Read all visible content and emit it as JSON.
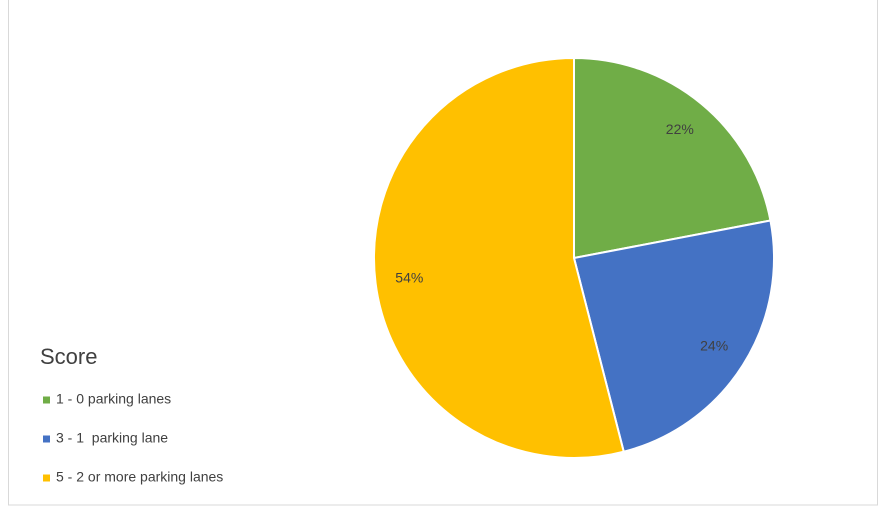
{
  "chart_data": {
    "type": "pie",
    "legend_title": "Score",
    "categories": [
      "1 - 0 parking lanes",
      "3 - 1  parking lane",
      "5 - 2 or more parking lanes"
    ],
    "values": [
      22,
      24,
      54
    ],
    "value_labels": [
      "22%",
      "24%",
      "54%"
    ],
    "colors": [
      "#70ad47",
      "#4472c4",
      "#ffc000"
    ],
    "legend": "left"
  }
}
